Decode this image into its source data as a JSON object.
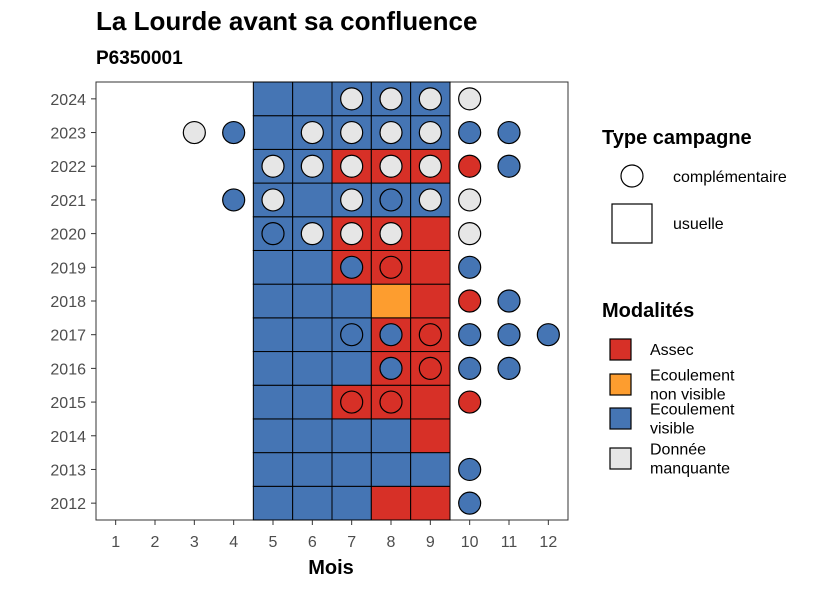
{
  "chart_data": {
    "type": "heatmap",
    "title": "La Lourde avant sa confluence",
    "subtitle": "P6350001",
    "xlabel": "Mois",
    "ylabel": "",
    "x_ticks": [
      "1",
      "2",
      "3",
      "4",
      "5",
      "6",
      "7",
      "8",
      "9",
      "10",
      "11",
      "12"
    ],
    "y_ticks": [
      "2012",
      "2013",
      "2014",
      "2015",
      "2016",
      "2017",
      "2018",
      "2019",
      "2020",
      "2021",
      "2022",
      "2023",
      "2024"
    ],
    "grid": false,
    "legend_position": "right",
    "colors": {
      "Assec": "#d73027",
      "Ecoulement non visible": "#fd9d2f",
      "Ecoulement visible": "#4575b4",
      "Donnée manquante": "#e6e6e6"
    },
    "legend_type": {
      "title": "Type campagne",
      "items": [
        {
          "shape": "circle",
          "label": "complémentaire"
        },
        {
          "shape": "square",
          "label": "usuelle"
        }
      ]
    },
    "legend_modalites": {
      "title": "Modalités",
      "items": [
        {
          "key": "Assec",
          "lines": [
            "Assec"
          ]
        },
        {
          "key": "Ecoulement non visible",
          "lines": [
            "Ecoulement",
            "non visible"
          ]
        },
        {
          "key": "Ecoulement visible",
          "lines": [
            "Ecoulement",
            "visible"
          ]
        },
        {
          "key": "Donnée manquante",
          "lines": [
            "Donnée",
            "manquante"
          ]
        }
      ]
    },
    "usuelle": [
      {
        "year": 2012,
        "month": 5,
        "value": "Ecoulement visible"
      },
      {
        "year": 2012,
        "month": 6,
        "value": "Ecoulement visible"
      },
      {
        "year": 2012,
        "month": 7,
        "value": "Ecoulement visible"
      },
      {
        "year": 2012,
        "month": 8,
        "value": "Assec"
      },
      {
        "year": 2012,
        "month": 9,
        "value": "Assec"
      },
      {
        "year": 2013,
        "month": 5,
        "value": "Ecoulement visible"
      },
      {
        "year": 2013,
        "month": 6,
        "value": "Ecoulement visible"
      },
      {
        "year": 2013,
        "month": 7,
        "value": "Ecoulement visible"
      },
      {
        "year": 2013,
        "month": 8,
        "value": "Ecoulement visible"
      },
      {
        "year": 2013,
        "month": 9,
        "value": "Ecoulement visible"
      },
      {
        "year": 2014,
        "month": 5,
        "value": "Ecoulement visible"
      },
      {
        "year": 2014,
        "month": 6,
        "value": "Ecoulement visible"
      },
      {
        "year": 2014,
        "month": 7,
        "value": "Ecoulement visible"
      },
      {
        "year": 2014,
        "month": 8,
        "value": "Ecoulement visible"
      },
      {
        "year": 2014,
        "month": 9,
        "value": "Assec"
      },
      {
        "year": 2015,
        "month": 5,
        "value": "Ecoulement visible"
      },
      {
        "year": 2015,
        "month": 6,
        "value": "Ecoulement visible"
      },
      {
        "year": 2015,
        "month": 7,
        "value": "Assec"
      },
      {
        "year": 2015,
        "month": 8,
        "value": "Assec"
      },
      {
        "year": 2015,
        "month": 9,
        "value": "Assec"
      },
      {
        "year": 2016,
        "month": 5,
        "value": "Ecoulement visible"
      },
      {
        "year": 2016,
        "month": 6,
        "value": "Ecoulement visible"
      },
      {
        "year": 2016,
        "month": 7,
        "value": "Ecoulement visible"
      },
      {
        "year": 2016,
        "month": 8,
        "value": "Assec"
      },
      {
        "year": 2016,
        "month": 9,
        "value": "Assec"
      },
      {
        "year": 2017,
        "month": 5,
        "value": "Ecoulement visible"
      },
      {
        "year": 2017,
        "month": 6,
        "value": "Ecoulement visible"
      },
      {
        "year": 2017,
        "month": 7,
        "value": "Ecoulement visible"
      },
      {
        "year": 2017,
        "month": 8,
        "value": "Assec"
      },
      {
        "year": 2017,
        "month": 9,
        "value": "Assec"
      },
      {
        "year": 2018,
        "month": 5,
        "value": "Ecoulement visible"
      },
      {
        "year": 2018,
        "month": 6,
        "value": "Ecoulement visible"
      },
      {
        "year": 2018,
        "month": 7,
        "value": "Ecoulement visible"
      },
      {
        "year": 2018,
        "month": 8,
        "value": "Ecoulement non visible"
      },
      {
        "year": 2018,
        "month": 9,
        "value": "Assec"
      },
      {
        "year": 2019,
        "month": 5,
        "value": "Ecoulement visible"
      },
      {
        "year": 2019,
        "month": 6,
        "value": "Ecoulement visible"
      },
      {
        "year": 2019,
        "month": 7,
        "value": "Assec"
      },
      {
        "year": 2019,
        "month": 8,
        "value": "Assec"
      },
      {
        "year": 2019,
        "month": 9,
        "value": "Assec"
      },
      {
        "year": 2020,
        "month": 5,
        "value": "Ecoulement visible"
      },
      {
        "year": 2020,
        "month": 6,
        "value": "Ecoulement visible"
      },
      {
        "year": 2020,
        "month": 7,
        "value": "Assec"
      },
      {
        "year": 2020,
        "month": 8,
        "value": "Assec"
      },
      {
        "year": 2020,
        "month": 9,
        "value": "Assec"
      },
      {
        "year": 2021,
        "month": 5,
        "value": "Ecoulement visible"
      },
      {
        "year": 2021,
        "month": 6,
        "value": "Ecoulement visible"
      },
      {
        "year": 2021,
        "month": 7,
        "value": "Ecoulement visible"
      },
      {
        "year": 2021,
        "month": 8,
        "value": "Ecoulement visible"
      },
      {
        "year": 2021,
        "month": 9,
        "value": "Ecoulement visible"
      },
      {
        "year": 2022,
        "month": 5,
        "value": "Ecoulement visible"
      },
      {
        "year": 2022,
        "month": 6,
        "value": "Ecoulement visible"
      },
      {
        "year": 2022,
        "month": 7,
        "value": "Assec"
      },
      {
        "year": 2022,
        "month": 8,
        "value": "Assec"
      },
      {
        "year": 2022,
        "month": 9,
        "value": "Assec"
      },
      {
        "year": 2023,
        "month": 5,
        "value": "Ecoulement visible"
      },
      {
        "year": 2023,
        "month": 6,
        "value": "Ecoulement visible"
      },
      {
        "year": 2023,
        "month": 7,
        "value": "Ecoulement visible"
      },
      {
        "year": 2023,
        "month": 8,
        "value": "Ecoulement visible"
      },
      {
        "year": 2023,
        "month": 9,
        "value": "Ecoulement visible"
      },
      {
        "year": 2024,
        "month": 5,
        "value": "Ecoulement visible"
      },
      {
        "year": 2024,
        "month": 6,
        "value": "Ecoulement visible"
      },
      {
        "year": 2024,
        "month": 7,
        "value": "Ecoulement visible"
      },
      {
        "year": 2024,
        "month": 8,
        "value": "Ecoulement visible"
      },
      {
        "year": 2024,
        "month": 9,
        "value": "Ecoulement visible"
      }
    ],
    "complementaire": [
      {
        "year": 2024,
        "month": 7,
        "value": "Donnée manquante"
      },
      {
        "year": 2024,
        "month": 8,
        "value": "Donnée manquante"
      },
      {
        "year": 2024,
        "month": 9,
        "value": "Donnée manquante"
      },
      {
        "year": 2024,
        "month": 10,
        "value": "Donnée manquante"
      },
      {
        "year": 2023,
        "month": 3,
        "value": "Donnée manquante"
      },
      {
        "year": 2023,
        "month": 4,
        "value": "Ecoulement visible"
      },
      {
        "year": 2023,
        "month": 6,
        "value": "Donnée manquante"
      },
      {
        "year": 2023,
        "month": 7,
        "value": "Donnée manquante"
      },
      {
        "year": 2023,
        "month": 8,
        "value": "Donnée manquante"
      },
      {
        "year": 2023,
        "month": 9,
        "value": "Donnée manquante"
      },
      {
        "year": 2023,
        "month": 10,
        "value": "Ecoulement visible"
      },
      {
        "year": 2023,
        "month": 11,
        "value": "Ecoulement visible"
      },
      {
        "year": 2022,
        "month": 5,
        "value": "Donnée manquante"
      },
      {
        "year": 2022,
        "month": 6,
        "value": "Donnée manquante"
      },
      {
        "year": 2022,
        "month": 7,
        "value": "Donnée manquante"
      },
      {
        "year": 2022,
        "month": 8,
        "value": "Donnée manquante"
      },
      {
        "year": 2022,
        "month": 9,
        "value": "Donnée manquante"
      },
      {
        "year": 2022,
        "month": 10,
        "value": "Assec"
      },
      {
        "year": 2022,
        "month": 11,
        "value": "Ecoulement visible"
      },
      {
        "year": 2021,
        "month": 4,
        "value": "Ecoulement visible"
      },
      {
        "year": 2021,
        "month": 5,
        "value": "Donnée manquante"
      },
      {
        "year": 2021,
        "month": 7,
        "value": "Donnée manquante"
      },
      {
        "year": 2021,
        "month": 8,
        "value": "Ecoulement visible"
      },
      {
        "year": 2021,
        "month": 9,
        "value": "Donnée manquante"
      },
      {
        "year": 2021,
        "month": 10,
        "value": "Donnée manquante"
      },
      {
        "year": 2020,
        "month": 5,
        "value": "Ecoulement visible"
      },
      {
        "year": 2020,
        "month": 6,
        "value": "Donnée manquante"
      },
      {
        "year": 2020,
        "month": 7,
        "value": "Donnée manquante"
      },
      {
        "year": 2020,
        "month": 8,
        "value": "Donnée manquante"
      },
      {
        "year": 2020,
        "month": 10,
        "value": "Donnée manquante"
      },
      {
        "year": 2019,
        "month": 7,
        "value": "Ecoulement visible"
      },
      {
        "year": 2019,
        "month": 8,
        "value": "Assec"
      },
      {
        "year": 2019,
        "month": 10,
        "value": "Ecoulement visible"
      },
      {
        "year": 2018,
        "month": 10,
        "value": "Assec"
      },
      {
        "year": 2018,
        "month": 11,
        "value": "Ecoulement visible"
      },
      {
        "year": 2017,
        "month": 7,
        "value": "Ecoulement visible"
      },
      {
        "year": 2017,
        "month": 8,
        "value": "Ecoulement visible"
      },
      {
        "year": 2017,
        "month": 9,
        "value": "Assec"
      },
      {
        "year": 2017,
        "month": 10,
        "value": "Ecoulement visible"
      },
      {
        "year": 2017,
        "month": 11,
        "value": "Ecoulement visible"
      },
      {
        "year": 2017,
        "month": 12,
        "value": "Ecoulement visible"
      },
      {
        "year": 2016,
        "month": 8,
        "value": "Ecoulement visible"
      },
      {
        "year": 2016,
        "month": 9,
        "value": "Assec"
      },
      {
        "year": 2016,
        "month": 10,
        "value": "Ecoulement visible"
      },
      {
        "year": 2016,
        "month": 11,
        "value": "Ecoulement visible"
      },
      {
        "year": 2015,
        "month": 7,
        "value": "Assec"
      },
      {
        "year": 2015,
        "month": 8,
        "value": "Assec"
      },
      {
        "year": 2015,
        "month": 10,
        "value": "Assec"
      },
      {
        "year": 2013,
        "month": 10,
        "value": "Ecoulement visible"
      },
      {
        "year": 2012,
        "month": 10,
        "value": "Ecoulement visible"
      }
    ]
  }
}
